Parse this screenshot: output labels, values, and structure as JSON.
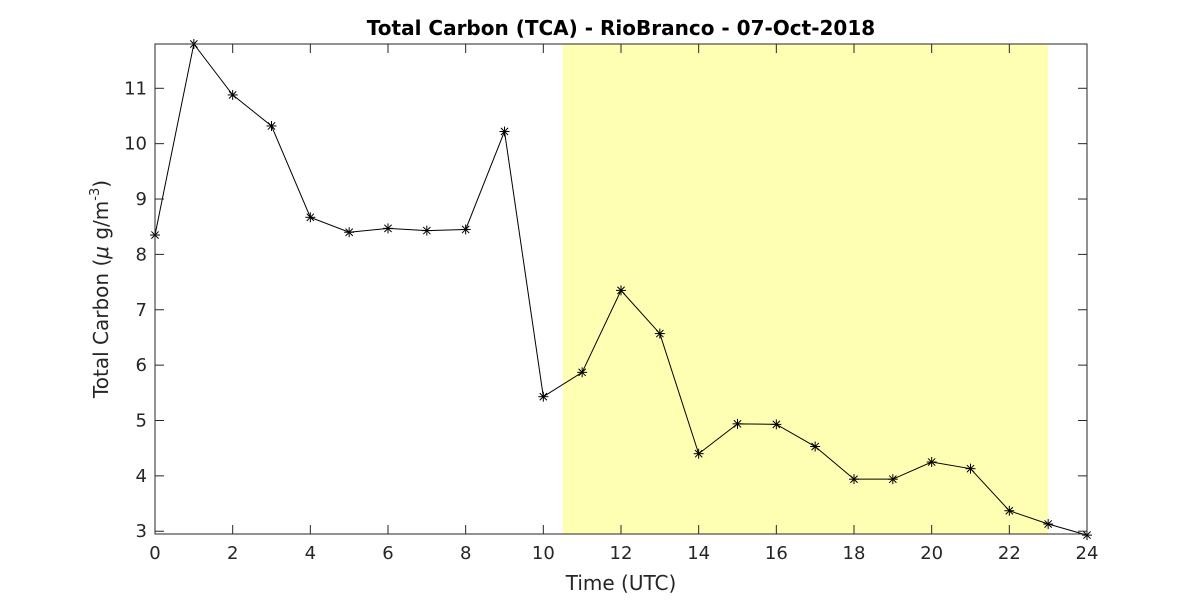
{
  "chart_data": {
    "type": "line",
    "title": "Total Carbon (TCA) - RioBranco - 07-Oct-2018",
    "xlabel": "Time (UTC)",
    "ylabel_prefix": "Total Carbon (",
    "ylabel_mu": "μ",
    "ylabel_unit": " g/m",
    "ylabel_sup": "-3",
    "ylabel_suffix": ")",
    "xlim": [
      0,
      24
    ],
    "ylim": [
      2.95,
      11.8
    ],
    "xticks": [
      0,
      2,
      4,
      6,
      8,
      10,
      12,
      14,
      16,
      18,
      20,
      22,
      24
    ],
    "yticks": [
      3,
      4,
      5,
      6,
      7,
      8,
      9,
      10,
      11
    ],
    "highlight_range": [
      10.5,
      23
    ],
    "colors": {
      "highlight": "#ffffb3",
      "line": "#000000",
      "axis": "#262626"
    },
    "marker": "asterisk",
    "grid": false,
    "x": [
      0,
      1,
      2,
      3,
      4,
      5,
      6,
      7,
      8,
      9,
      10,
      11,
      12,
      13,
      14,
      15,
      16,
      17,
      18,
      19,
      20,
      21,
      22,
      23,
      24
    ],
    "values": [
      8.35,
      11.8,
      10.88,
      10.32,
      8.67,
      8.4,
      8.47,
      8.43,
      8.45,
      10.22,
      5.43,
      5.87,
      7.35,
      6.57,
      4.4,
      4.94,
      4.93,
      4.53,
      3.94,
      3.94,
      4.25,
      4.13,
      3.37,
      3.13,
      2.93
    ]
  }
}
